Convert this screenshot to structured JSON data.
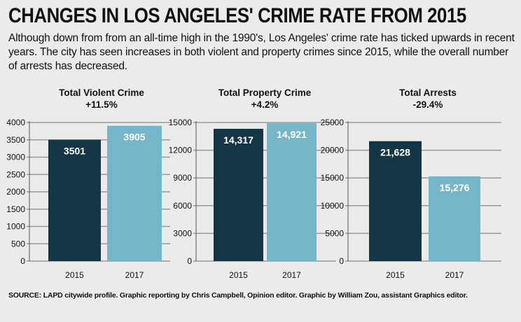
{
  "headline": "CHANGES IN LOS ANGELES' CRIME RATE FROM 2015",
  "deck": "Although down from from an all-time high in the 1990's, Los Angeles' crime rate has ticked upwards in recent years. The city has seen increases in both violent and property crimes since 2015, while the overall number of arrests has decreased.",
  "source": "SOURCE: LAPD citywide profile. Graphic reporting by Chris Campbell, Opinion editor. Graphic by William Zou, assistant Graphics editor.",
  "colors": {
    "bar_2015": "#133544",
    "bar_2017": "#76b6c9",
    "grid": "#9a9a9a",
    "background": "#ebebeb"
  },
  "chart_data": [
    {
      "type": "bar",
      "title": "Total Violent Crime",
      "subtitle": "+11.5%",
      "categories": [
        "2015",
        "2017"
      ],
      "values": [
        3501,
        3905
      ],
      "value_labels": [
        "3501",
        "3905"
      ],
      "yticks": [
        0,
        500,
        1000,
        1500,
        2000,
        2500,
        3000,
        3500,
        4000
      ],
      "ytick_labels": [
        "0",
        "500",
        "1000",
        "1500",
        "2000",
        "2500",
        "3000",
        "3500",
        "4000"
      ],
      "ylim": [
        0,
        4000
      ],
      "grid": true
    },
    {
      "type": "bar",
      "title": "Total Property Crime",
      "subtitle": "+4.2%",
      "categories": [
        "2015",
        "2017"
      ],
      "values": [
        14317,
        14921
      ],
      "value_labels": [
        "14,317",
        "14,921"
      ],
      "yticks": [
        0,
        3000,
        6000,
        9000,
        12000,
        15000
      ],
      "ytick_labels": [
        "0",
        "3000",
        "6000",
        "9000",
        "12000",
        "15000"
      ],
      "ylim": [
        0,
        15000
      ],
      "grid": true
    },
    {
      "type": "bar",
      "title": "Total Arrests",
      "subtitle": "-29.4%",
      "categories": [
        "2015",
        "2017"
      ],
      "values": [
        21628,
        15276
      ],
      "value_labels": [
        "21,628",
        "15,276"
      ],
      "yticks": [
        0,
        5000,
        10000,
        15000,
        20000,
        25000
      ],
      "ytick_labels": [
        "0",
        "5000",
        "10000",
        "15000",
        "20000",
        "25000"
      ],
      "ylim": [
        0,
        25000
      ],
      "grid": true
    }
  ]
}
